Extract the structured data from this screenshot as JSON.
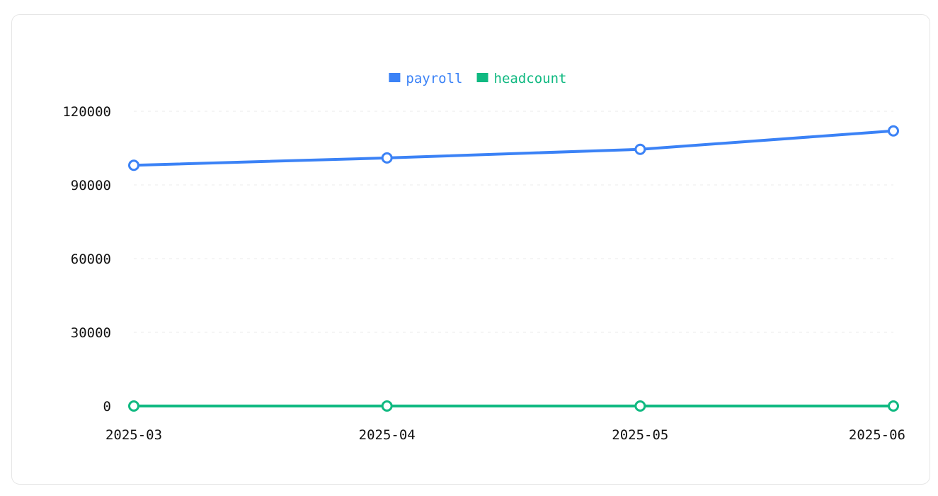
{
  "chart_data": {
    "type": "line",
    "categories": [
      "2025-03",
      "2025-04",
      "2025-05",
      "2025-06"
    ],
    "series": [
      {
        "name": "payroll",
        "values": [
          98000,
          101000,
          104500,
          112000
        ],
        "color": "#3b82f6"
      },
      {
        "name": "headcount",
        "values": [
          0,
          0,
          0,
          0
        ],
        "color": "#10b981"
      }
    ],
    "yticks": [
      "0",
      "30000",
      "60000",
      "90000",
      "120000"
    ],
    "ylim": [
      0,
      120000
    ],
    "grid": true,
    "legend_position": "top-center",
    "title": "",
    "xlabel": "",
    "ylabel": ""
  }
}
